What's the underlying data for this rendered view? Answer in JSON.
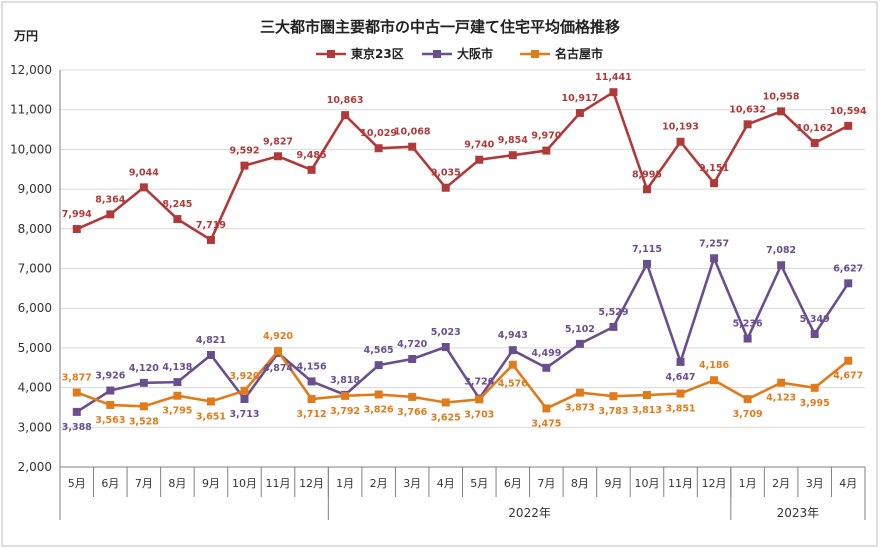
{
  "chart_data": {
    "type": "line",
    "title": "三大都市圏主要都市の中古一戸建て住宅平均価格推移",
    "ylabel": "万円",
    "ylim": [
      2000,
      12000
    ],
    "yticks": [
      "2,000",
      "3,000",
      "4,000",
      "5,000",
      "6,000",
      "7,000",
      "8,000",
      "9,000",
      "10,000",
      "11,000",
      "12,000"
    ],
    "categories": [
      "5月",
      "6月",
      "7月",
      "8月",
      "9月",
      "10月",
      "11月",
      "12月",
      "1月",
      "2月",
      "3月",
      "4月",
      "5月",
      "6月",
      "7月",
      "8月",
      "9月",
      "10月",
      "11月",
      "12月",
      "1月",
      "2月",
      "3月",
      "4月"
    ],
    "year_labels": [
      {
        "label": "2022年",
        "from": 8,
        "to": 19
      },
      {
        "label": "2023年",
        "from": 20,
        "to": 23
      }
    ],
    "legend_position": "top",
    "series": [
      {
        "name": "東京23区",
        "color": "#b03a3a",
        "marker": "square",
        "values": [
          7994,
          8364,
          9044,
          8245,
          7719,
          9592,
          9827,
          9485,
          10863,
          10029,
          10068,
          9035,
          9740,
          9854,
          9970,
          10917,
          11441,
          8995,
          10193,
          9151,
          10632,
          10958,
          10162,
          10594
        ],
        "labels": [
          "7,994",
          "8,364",
          "9,044",
          "8,245",
          "7,719",
          "9,592",
          "9,827",
          "9,485",
          "10,863",
          "10,029",
          "10,068",
          "9,035",
          "9,740",
          "9,854",
          "9,970",
          "10,917",
          "11,441",
          "8,995",
          "10,193",
          "9,151",
          "10,632",
          "10,958",
          "10,162",
          "10,594"
        ]
      },
      {
        "name": "大阪市",
        "color": "#6a4f8f",
        "marker": "square",
        "values": [
          3388,
          3926,
          4120,
          4138,
          4821,
          3713,
          4874,
          4156,
          3818,
          4565,
          4720,
          5023,
          3726,
          4943,
          4499,
          5102,
          5529,
          7115,
          4647,
          7257,
          5236,
          7082,
          5349,
          6627
        ],
        "labels": [
          "3,388",
          "3,926",
          "4,120",
          "4,138",
          "4,821",
          "3,713",
          "4,874",
          "4,156",
          "3,818",
          "4,565",
          "4,720",
          "5,023",
          "3,726",
          "4,943",
          "4,499",
          "5,102",
          "5,529",
          "7,115",
          "4,647",
          "7,257",
          "5,236",
          "7,082",
          "5,349",
          "6,627"
        ]
      },
      {
        "name": "名古屋市",
        "color": "#e07b1c",
        "marker": "square",
        "values": [
          3877,
          3563,
          3528,
          3795,
          3651,
          3920,
          4920,
          3712,
          3792,
          3826,
          3766,
          3625,
          3703,
          4576,
          3475,
          3873,
          3783,
          3813,
          3851,
          4186,
          3709,
          4123,
          3995,
          4677
        ],
        "labels": [
          "3,877",
          "3,563",
          "3,528",
          "3,795",
          "3,651",
          "3,920",
          "4,920",
          "3,712",
          "3,792",
          "3,826",
          "3,766",
          "3,625",
          "3,703",
          "4,576",
          "3,475",
          "3,873",
          "3,783",
          "3,813",
          "3,851",
          "4,186",
          "3,709",
          "4,123",
          "3,995",
          "4,677"
        ]
      }
    ]
  }
}
